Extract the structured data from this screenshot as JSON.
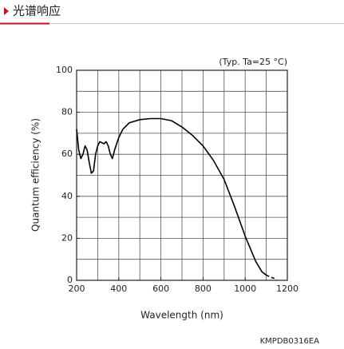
{
  "header": {
    "title": "光谱响应"
  },
  "chart_data": {
    "type": "line",
    "annotation": "(Typ. Ta=25 °C)",
    "xlabel": "Wavelength (nm)",
    "ylabel": "Quantum efficiency (%)",
    "xlim": [
      200,
      1200
    ],
    "ylim": [
      0,
      100
    ],
    "xticks": [
      200,
      400,
      600,
      800,
      1000,
      1200
    ],
    "yticks": [
      0,
      20,
      40,
      60,
      80,
      100
    ],
    "xgrid": [
      200,
      300,
      400,
      500,
      600,
      700,
      800,
      900,
      1000,
      1100,
      1200
    ],
    "ygrid": [
      0,
      10,
      20,
      30,
      40,
      50,
      60,
      70,
      80,
      90,
      100
    ],
    "series": [
      {
        "color": "#000000",
        "style": "solid",
        "x": [
          200,
          210,
          220,
          230,
          240,
          250,
          260,
          270,
          280,
          290,
          300,
          310,
          320,
          330,
          340,
          350,
          360,
          370,
          380,
          400,
          420,
          450,
          500,
          550,
          600,
          650,
          700,
          750,
          800,
          850,
          900,
          950,
          1000,
          1050,
          1080,
          1100
        ],
        "values": [
          72,
          62,
          58,
          60,
          64,
          62,
          56,
          51,
          52,
          60,
          64,
          66,
          65.5,
          65,
          66,
          64,
          60,
          58,
          62,
          68,
          72,
          75,
          76.5,
          77,
          77,
          76,
          73,
          69,
          64,
          57,
          48,
          35,
          21,
          9,
          4,
          2.5
        ]
      },
      {
        "color": "#000000",
        "style": "dashed",
        "x": [
          1100,
          1120,
          1150
        ],
        "values": [
          2.5,
          1.5,
          0.5
        ]
      }
    ]
  },
  "footer": {
    "code": "KMPDB0316EA"
  }
}
